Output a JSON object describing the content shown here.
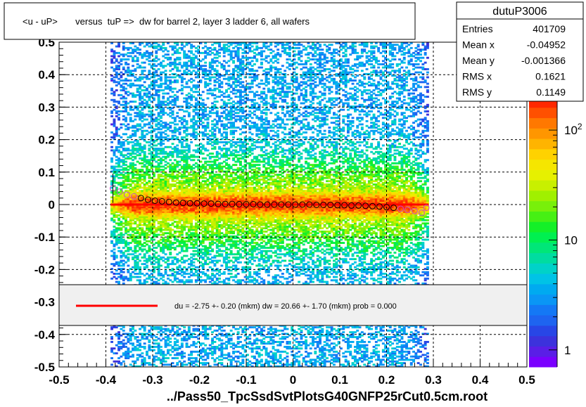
{
  "chart_data": {
    "type": "heatmap",
    "title": "<u - uP>       versus  tuP =>  dw for barrel 2, layer 3 ladder 6, all wafers",
    "xlabel": "../Pass50_TpcSsdSvtPlotsG40GNFP25rCut0.5cm.root",
    "ylabel": "",
    "xlim": [
      -0.5,
      0.5
    ],
    "ylim": [
      -0.5,
      0.5
    ],
    "x_ticks": [
      "-0.5",
      "-0.4",
      "-0.3",
      "-0.2",
      "-0.1",
      "0",
      "0.1",
      "0.2",
      "0.3",
      "0.4",
      "0.5"
    ],
    "x_tick_values": [
      -0.5,
      -0.4,
      -0.3,
      -0.2,
      -0.1,
      0,
      0.1,
      0.2,
      0.3,
      0.4,
      0.5
    ],
    "y_ticks": [
      "-0.5",
      "-0.4",
      "-0.3",
      "-0.2",
      "-0.1",
      "0",
      "0.1",
      "0.2",
      "0.3",
      "0.4",
      "0.5"
    ],
    "y_tick_values": [
      -0.5,
      -0.4,
      -0.3,
      -0.2,
      -0.1,
      0,
      0.1,
      0.2,
      0.3,
      0.4,
      0.5
    ],
    "grid": true,
    "z_scale": "log",
    "z_ticks": [
      {
        "value": 1,
        "label": "1"
      },
      {
        "value": 10,
        "label": "10"
      },
      {
        "value": 100,
        "label": "10",
        "sup": "2"
      }
    ],
    "z_range": [
      0.7,
      200
    ],
    "data_x_range": [
      -0.39,
      0.29
    ],
    "fit_line": {
      "x": [
        -0.39,
        0.29
      ],
      "y": [
        0.0,
        0.0
      ],
      "color": "#ff0000"
    },
    "profile_points": {
      "x": [
        -0.385,
        -0.37,
        -0.355,
        -0.34,
        -0.325,
        -0.31,
        -0.295,
        -0.28,
        -0.265,
        -0.25,
        -0.235,
        -0.22,
        -0.205,
        -0.19,
        -0.175,
        -0.16,
        -0.145,
        -0.13,
        -0.115,
        -0.1,
        -0.085,
        -0.07,
        -0.055,
        -0.04,
        -0.025,
        -0.01,
        0.005,
        0.02,
        0.035,
        0.05,
        0.065,
        0.08,
        0.095,
        0.11,
        0.125,
        0.14,
        0.155,
        0.17,
        0.185,
        0.2,
        0.215,
        0.23,
        0.245,
        0.26,
        0.275,
        0.285
      ],
      "y": [
        0.05,
        0.04,
        0.03,
        0.025,
        0.02,
        0.015,
        0.012,
        0.01,
        0.008,
        0.006,
        0.005,
        0.004,
        0.004,
        0.003,
        0.003,
        0.002,
        0.002,
        0.002,
        0.001,
        0.001,
        0.001,
        0.0,
        0.0,
        0.0,
        0.0,
        0.0,
        0.0,
        0.0,
        0.0,
        -0.001,
        -0.001,
        -0.001,
        -0.002,
        -0.002,
        -0.003,
        -0.003,
        -0.004,
        -0.005,
        -0.006,
        -0.008,
        -0.01,
        -0.013,
        -0.016,
        -0.02,
        -0.025,
        -0.01
      ]
    },
    "stats": {
      "name": "dutuP3006",
      "rows": [
        {
          "label": "Entries",
          "value": "401709"
        },
        {
          "label": "Mean x",
          "value": "-0.04952"
        },
        {
          "label": "Mean y",
          "value": "-0.001366"
        },
        {
          "label": "RMS x",
          "value": "0.1621"
        },
        {
          "label": "RMS y",
          "value": "0.1149"
        }
      ]
    },
    "legend": {
      "text": "du =   -2.75 +-  0.20 (mkm) dw =   20.66 +-  1.70 (mkm) prob = 0.000",
      "line_color": "#ff0000"
    }
  }
}
